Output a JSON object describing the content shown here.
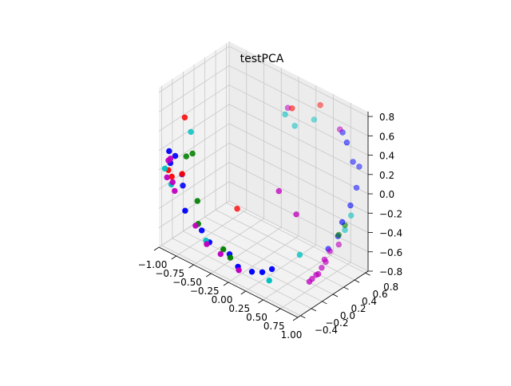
{
  "chart_data": {
    "type": "scatter",
    "projection": "3d",
    "title": "testPCA",
    "xlabel": "",
    "ylabel": "",
    "zlabel": "",
    "grid": true,
    "legend": "none",
    "xlim": [
      -1.0,
      1.0
    ],
    "ylim": [
      -0.45,
      0.85
    ],
    "zlim": [
      -0.8,
      0.85
    ],
    "x_ticks": [
      "−1.00",
      "−0.75",
      "−0.50",
      "−0.25",
      "0.00",
      "0.25",
      "0.50",
      "0.75",
      "1.00"
    ],
    "y_ticks": [
      "−0.4",
      "−0.2",
      "0.0",
      "0.2",
      "0.4",
      "0.6",
      "0.8"
    ],
    "z_ticks": [
      "−0.8",
      "−0.6",
      "−0.4",
      "−0.2",
      "0.0",
      "0.2",
      "0.4",
      "0.6",
      "0.8"
    ],
    "x_tick_values": [
      -1.0,
      -0.75,
      -0.5,
      -0.25,
      0.0,
      0.25,
      0.5,
      0.75,
      1.0
    ],
    "y_tick_values": [
      -0.4,
      -0.2,
      0.0,
      0.2,
      0.4,
      0.6,
      0.8
    ],
    "z_tick_values": [
      -0.8,
      -0.6,
      -0.4,
      -0.2,
      0.0,
      0.2,
      0.4,
      0.6,
      0.8
    ],
    "pane_colors": {
      "left": "#f2f2f2",
      "back": "#ececec",
      "floor": "#f2f2f2"
    },
    "grid_color": "#c8c8c8",
    "series": [
      {
        "color": "#0000ff",
        "points": [
          [
            -0.97,
            -0.3,
            0.15
          ],
          [
            -0.99,
            -0.25,
            0.0
          ],
          [
            -0.9,
            -0.15,
            -0.12
          ],
          [
            -0.92,
            -0.25,
            0.1
          ],
          [
            -0.85,
            -0.2,
            -0.2
          ],
          [
            -0.7,
            -0.35,
            -0.35
          ],
          [
            -0.5,
            -0.3,
            -0.5
          ],
          [
            -0.35,
            -0.35,
            -0.55
          ],
          [
            -0.1,
            -0.3,
            -0.6
          ],
          [
            0.1,
            -0.4,
            -0.62
          ],
          [
            0.3,
            -0.4,
            -0.6
          ],
          [
            0.45,
            -0.4,
            -0.55
          ],
          [
            0.55,
            -0.35,
            -0.5
          ],
          [
            0.75,
            0.7,
            0.6
          ],
          [
            0.9,
            0.7,
            0.35
          ],
          [
            0.95,
            0.75,
            0.3
          ],
          [
            0.95,
            0.7,
            0.1
          ],
          [
            0.94,
            0.6,
            -0.05
          ],
          [
            0.9,
            0.5,
            -0.2
          ],
          [
            0.85,
            0.65,
            0.55
          ],
          [
            0.8,
            0.55,
            -0.4
          ],
          [
            0.7,
            0.5,
            -0.55
          ]
        ]
      },
      {
        "color": "#ff0000",
        "points": [
          [
            -0.9,
            -0.1,
            0.45
          ],
          [
            -0.98,
            -0.3,
            -0.05
          ],
          [
            -0.93,
            -0.3,
            -0.1
          ],
          [
            -0.82,
            -0.25,
            -0.05
          ],
          [
            0.1,
            0.6,
            0.65
          ],
          [
            0.35,
            0.8,
            0.7
          ],
          [
            -0.3,
            0.1,
            -0.35
          ]
        ]
      },
      {
        "color": "#00bfbf",
        "points": [
          [
            -0.85,
            -0.05,
            0.3
          ],
          [
            -0.99,
            -0.35,
            -0.02
          ],
          [
            -0.9,
            -0.35,
            -0.15
          ],
          [
            -0.4,
            -0.35,
            -0.55
          ],
          [
            0.0,
            0.6,
            0.55
          ],
          [
            0.1,
            0.65,
            0.45
          ],
          [
            0.3,
            0.75,
            0.55
          ],
          [
            0.55,
            -0.4,
            -0.6
          ],
          [
            0.95,
            0.6,
            -0.15
          ],
          [
            0.9,
            0.55,
            -0.3
          ],
          [
            0.6,
            0.1,
            -0.5
          ]
        ]
      },
      {
        "color": "#008000",
        "points": [
          [
            -0.75,
            -0.15,
            0.15
          ],
          [
            -0.8,
            -0.2,
            0.12
          ],
          [
            -0.6,
            -0.25,
            -0.25
          ],
          [
            -0.55,
            -0.3,
            -0.45
          ],
          [
            -0.15,
            -0.35,
            -0.55
          ],
          [
            -0.05,
            -0.35,
            -0.6
          ],
          [
            0.9,
            0.55,
            -0.25
          ],
          [
            0.85,
            0.5,
            -0.35
          ]
        ]
      },
      {
        "color": "#bf00bf",
        "points": [
          [
            -0.98,
            -0.3,
            0.05
          ],
          [
            -0.95,
            -0.3,
            0.08
          ],
          [
            -0.96,
            -0.35,
            -0.1
          ],
          [
            -0.88,
            -0.35,
            -0.12
          ],
          [
            -0.85,
            -0.35,
            -0.2
          ],
          [
            -0.55,
            -0.35,
            -0.45
          ],
          [
            -0.35,
            -0.4,
            -0.55
          ],
          [
            -0.15,
            -0.4,
            -0.58
          ],
          [
            0.0,
            0.65,
            0.6
          ],
          [
            0.3,
            0.1,
            0.05
          ],
          [
            0.55,
            0.1,
            -0.1
          ],
          [
            0.15,
            -0.45,
            -0.62
          ],
          [
            0.75,
            0.65,
            0.65
          ],
          [
            0.85,
            0.5,
            -0.45
          ],
          [
            0.8,
            0.4,
            -0.5
          ],
          [
            0.78,
            0.35,
            -0.6
          ],
          [
            0.8,
            0.3,
            -0.55
          ],
          [
            0.76,
            0.3,
            -0.65
          ],
          [
            0.75,
            0.25,
            -0.7
          ],
          [
            0.72,
            0.25,
            -0.72
          ],
          [
            0.7,
            0.2,
            -0.75
          ],
          [
            0.7,
            0.15,
            -0.76
          ]
        ]
      }
    ]
  }
}
